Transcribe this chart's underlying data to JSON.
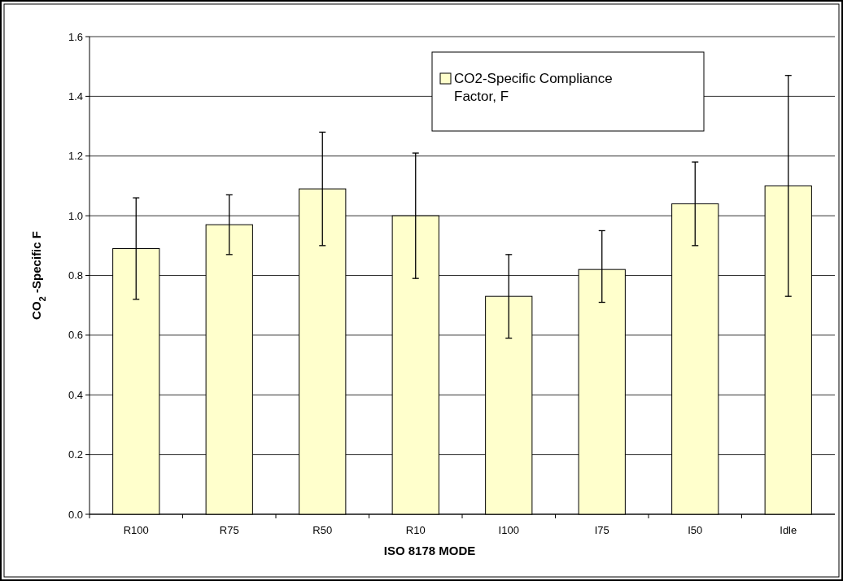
{
  "chart_data": {
    "type": "bar",
    "xlabel": "ISO 8178 MODE",
    "ylabel": "CO$_{2}$ -Specific F",
    "categories": [
      "R100",
      "R75",
      "R50",
      "R10",
      "I100",
      "I75",
      "I50",
      "Idle"
    ],
    "series": [
      {
        "name": "CO2-Specific Compliance Factor, F",
        "color": "#ffffcc",
        "values": [
          0.89,
          0.97,
          1.09,
          1.0,
          0.73,
          0.82,
          1.04,
          1.1
        ],
        "errors": [
          [
            0.72,
            1.06
          ],
          [
            0.87,
            1.07
          ],
          [
            0.9,
            1.28
          ],
          [
            0.79,
            1.21
          ],
          [
            0.59,
            0.87
          ],
          [
            0.71,
            0.95
          ],
          [
            0.9,
            1.18
          ],
          [
            0.73,
            1.47
          ]
        ]
      }
    ],
    "ylim": [
      0,
      1.6
    ],
    "yticks": [
      {
        "value": 0,
        "label": "0.0"
      },
      0.2,
      0.4,
      0.6,
      0.8,
      {
        "value": 1,
        "label": "1.0"
      },
      1.2,
      1.4,
      1.6
    ],
    "grid": "y",
    "legend": "top right"
  }
}
